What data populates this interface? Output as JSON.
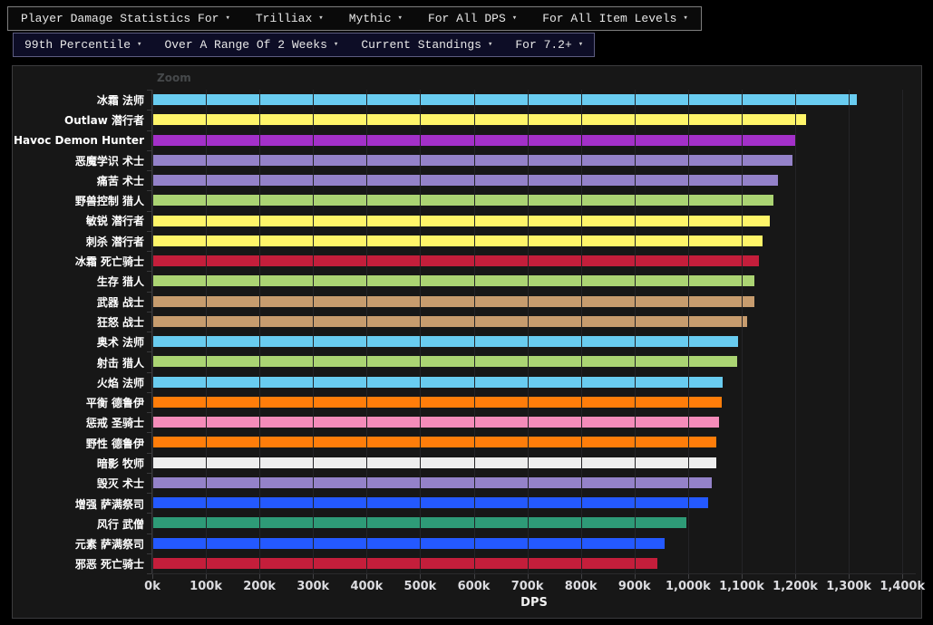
{
  "toolbars": {
    "caret_icon": "▾",
    "primary": {
      "items": [
        {
          "label": "Player Damage Statistics For"
        },
        {
          "label": "Trilliax"
        },
        {
          "label": "Mythic"
        },
        {
          "label": "For All DPS"
        },
        {
          "label": "For All Item Levels"
        }
      ]
    },
    "secondary": {
      "items": [
        {
          "label": "99th Percentile"
        },
        {
          "label": "Over A Range Of 2 Weeks"
        },
        {
          "label": "Current Standings"
        },
        {
          "label": "For 7.2+"
        }
      ]
    }
  },
  "chart": {
    "zoom_label": "Zoom",
    "axis_title": "DPS"
  },
  "chart_data": {
    "type": "bar",
    "orientation": "horizontal",
    "title": "",
    "xlabel": "DPS",
    "value_unit": "thousand DPS (k)",
    "xlim_k": [
      0,
      1425
    ],
    "grid": "vertical gridlines every 100k",
    "legend": "none",
    "x_ticks": [
      {
        "label": "0k",
        "value_k": 0
      },
      {
        "label": "100k",
        "value_k": 100
      },
      {
        "label": "200k",
        "value_k": 200
      },
      {
        "label": "300k",
        "value_k": 300
      },
      {
        "label": "400k",
        "value_k": 400
      },
      {
        "label": "500k",
        "value_k": 500
      },
      {
        "label": "600k",
        "value_k": 600
      },
      {
        "label": "700k",
        "value_k": 700
      },
      {
        "label": "800k",
        "value_k": 800
      },
      {
        "label": "900k",
        "value_k": 900
      },
      {
        "label": "1,000k",
        "value_k": 1000
      },
      {
        "label": "1,100k",
        "value_k": 1100
      },
      {
        "label": "1,200k",
        "value_k": 1200
      },
      {
        "label": "1,300k",
        "value_k": 1300
      },
      {
        "label": "1,400k",
        "value_k": 1400
      }
    ],
    "bars": [
      {
        "label": "冰霜 法师",
        "class": "mage",
        "value_k": 1315,
        "color": "#69CCF0"
      },
      {
        "label": "Outlaw 潜行者",
        "class": "rogue",
        "value_k": 1221,
        "color": "#FFF569"
      },
      {
        "label": "Havoc Demon Hunter",
        "class": "demon-hunter",
        "value_k": 1202,
        "color": "#A330C9"
      },
      {
        "label": "恶魔学识 术士",
        "class": "warlock",
        "value_k": 1194,
        "color": "#9482C9"
      },
      {
        "label": "痛苦 术士",
        "class": "warlock",
        "value_k": 1167,
        "color": "#9482C9"
      },
      {
        "label": "野兽控制 猎人",
        "class": "hunter",
        "value_k": 1159,
        "color": "#ABD473"
      },
      {
        "label": "敏锐 潜行者",
        "class": "rogue",
        "value_k": 1153,
        "color": "#FFF569"
      },
      {
        "label": "刺杀 潜行者",
        "class": "rogue",
        "value_k": 1139,
        "color": "#FFF569"
      },
      {
        "label": "冰霜 死亡骑士",
        "class": "death-knight",
        "value_k": 1133,
        "color": "#C41E3B"
      },
      {
        "label": "生存 猎人",
        "class": "hunter",
        "value_k": 1124,
        "color": "#ABD473"
      },
      {
        "label": "武器 战士",
        "class": "warrior",
        "value_k": 1123,
        "color": "#C79C6E"
      },
      {
        "label": "狂怒 战士",
        "class": "warrior",
        "value_k": 1111,
        "color": "#C79C6E"
      },
      {
        "label": "奥术 法师",
        "class": "mage",
        "value_k": 1093,
        "color": "#69CCF0"
      },
      {
        "label": "射击 猎人",
        "class": "hunter",
        "value_k": 1091,
        "color": "#ABD473"
      },
      {
        "label": "火焰 法师",
        "class": "mage",
        "value_k": 1064,
        "color": "#69CCF0"
      },
      {
        "label": "平衡 德鲁伊",
        "class": "druid",
        "value_k": 1062,
        "color": "#FF7D0A"
      },
      {
        "label": "惩戒 圣骑士",
        "class": "paladin",
        "value_k": 1057,
        "color": "#F58CBA"
      },
      {
        "label": "野性 德鲁伊",
        "class": "druid",
        "value_k": 1053,
        "color": "#FF7D0A"
      },
      {
        "label": "暗影 牧师",
        "class": "priest",
        "value_k": 1052,
        "color": "#EDEDED"
      },
      {
        "label": "毁灭 术士",
        "class": "warlock",
        "value_k": 1045,
        "color": "#9482C9"
      },
      {
        "label": "增强 萨满祭司",
        "class": "shaman",
        "value_k": 1037,
        "color": "#2459FF"
      },
      {
        "label": "风行 武僧",
        "class": "monk",
        "value_k": 996,
        "color": "#2E9B77"
      },
      {
        "label": "元素 萨满祭司",
        "class": "shaman",
        "value_k": 957,
        "color": "#2459FF"
      },
      {
        "label": "邪恶 死亡骑士",
        "class": "death-knight",
        "value_k": 943,
        "color": "#C41E3B"
      }
    ],
    "colors": {
      "background": "#171717",
      "page_background": "#000000",
      "gridline": "#242427",
      "category_label": "#FFFFFF",
      "tick_label": "#DCDCE0"
    }
  }
}
